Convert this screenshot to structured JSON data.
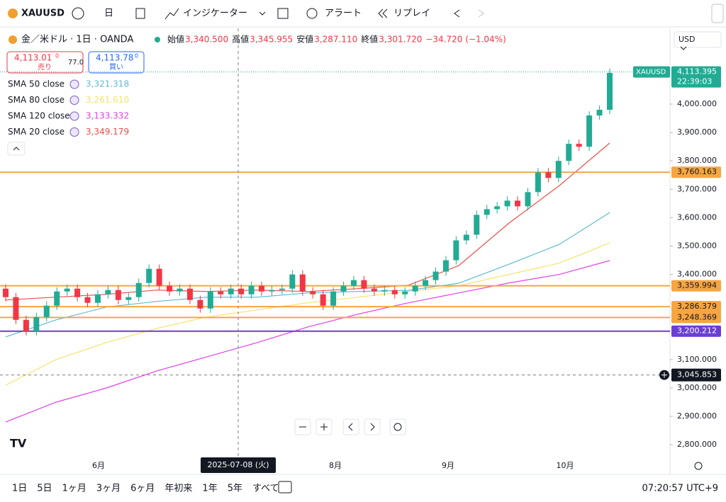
{
  "toolbar": {
    "symbol": "XAUUSD",
    "interval": "日",
    "indicators": "インジケーター",
    "alerts": "アラート",
    "replay": "リプレイ"
  },
  "header": {
    "title": "金／米ドル · 1日 · OANDA",
    "open_label": "始値",
    "open": "3,340.500",
    "high_label": "高値",
    "high": "3,345.955",
    "low_label": "安値",
    "low": "3,287.110",
    "close_label": "終値",
    "close": "3,301.720",
    "change": "−34.720 (−1.04%)",
    "sell_price": "4,113.01",
    "sell_sup": "0",
    "sell_label": "売り",
    "spread": "77.0",
    "buy_price": "4,113.78",
    "buy_sup": "0",
    "buy_label": "買い"
  },
  "indicators": [
    {
      "name": "SMA 50 close",
      "value": "3,321.318",
      "color": "#5fb9d6"
    },
    {
      "name": "SMA 80 close",
      "value": "3,261.610",
      "color": "#f5e26b"
    },
    {
      "name": "SMA 120 close",
      "value": "3,133.332",
      "color": "#e040e8"
    },
    {
      "name": "SMA 20 close",
      "value": "3,349.179",
      "color": "#e8504a"
    }
  ],
  "currency": "USD",
  "chart": {
    "type": "candlestick",
    "ylim": [
      2758,
      4267
    ],
    "up_color": "#22ab94",
    "down_color": "#f23645",
    "open": [
      3350,
      3320,
      3240,
      3200,
      3250,
      3290,
      3340,
      3350,
      3320,
      3300,
      3330,
      3345,
      3310,
      3320,
      3370,
      3420,
      3360,
      3340,
      3350,
      3310,
      3280,
      3340,
      3330,
      3350,
      3330,
      3360,
      3340,
      3345,
      3350,
      3400,
      3340,
      3330,
      3290,
      3340,
      3360,
      3380,
      3350,
      3340,
      3345,
      3330,
      3340,
      3360,
      3380,
      3410,
      3450,
      3520,
      3540,
      3610,
      3630,
      3640,
      3660,
      3640,
      3690,
      3760,
      3740,
      3800,
      3860,
      3850,
      3960,
      3980
    ],
    "high": [
      3365,
      3335,
      3255,
      3265,
      3305,
      3355,
      3365,
      3365,
      3335,
      3345,
      3360,
      3360,
      3335,
      3385,
      3435,
      3435,
      3375,
      3365,
      3365,
      3325,
      3355,
      3355,
      3365,
      3365,
      3375,
      3375,
      3360,
      3365,
      3415,
      3415,
      3355,
      3345,
      3355,
      3375,
      3395,
      3395,
      3365,
      3360,
      3360,
      3355,
      3375,
      3395,
      3425,
      3465,
      3535,
      3555,
      3625,
      3645,
      3655,
      3675,
      3675,
      3705,
      3775,
      3775,
      3815,
      3875,
      3875,
      3975,
      3995,
      4125
    ],
    "low": [
      3305,
      3225,
      3185,
      3185,
      3235,
      3275,
      3325,
      3305,
      3285,
      3285,
      3315,
      3295,
      3295,
      3305,
      3355,
      3345,
      3325,
      3325,
      3295,
      3265,
      3265,
      3315,
      3315,
      3315,
      3315,
      3325,
      3325,
      3330,
      3335,
      3325,
      3315,
      3275,
      3275,
      3325,
      3345,
      3335,
      3325,
      3325,
      3315,
      3315,
      3325,
      3345,
      3365,
      3395,
      3435,
      3505,
      3525,
      3595,
      3615,
      3625,
      3625,
      3625,
      3675,
      3725,
      3725,
      3785,
      3835,
      3835,
      3945,
      3965
    ],
    "close": [
      3320,
      3240,
      3200,
      3250,
      3290,
      3340,
      3350,
      3320,
      3300,
      3330,
      3345,
      3310,
      3320,
      3370,
      3420,
      3360,
      3340,
      3350,
      3310,
      3280,
      3340,
      3330,
      3350,
      3330,
      3360,
      3340,
      3345,
      3350,
      3400,
      3340,
      3330,
      3290,
      3340,
      3360,
      3380,
      3350,
      3340,
      3345,
      3330,
      3340,
      3360,
      3380,
      3410,
      3450,
      3520,
      3540,
      3610,
      3630,
      3640,
      3660,
      3640,
      3690,
      3760,
      3740,
      3800,
      3860,
      3850,
      3960,
      3980,
      4110
    ],
    "sma": [
      {
        "color": "#e8504a",
        "values": [
          3310,
          3320,
          3330,
          3345,
          3340,
          3345,
          3340,
          3350,
          3362,
          3431,
          3581,
          3713,
          3863
        ]
      },
      {
        "color": "#5fb9d6",
        "values": [
          3180,
          3240,
          3285,
          3305,
          3320,
          3320,
          3335,
          3340,
          3344,
          3369,
          3436,
          3506,
          3618
        ]
      },
      {
        "color": "#f5e26b",
        "values": [
          3010,
          3100,
          3160,
          3210,
          3250,
          3275,
          3300,
          3320,
          3340,
          3360,
          3400,
          3440,
          3511
        ]
      },
      {
        "color": "#e040e8",
        "values": [
          2880,
          2950,
          3000,
          3060,
          3110,
          3160,
          3215,
          3260,
          3300,
          3335,
          3370,
          3400,
          3449
        ]
      }
    ],
    "levels": [
      {
        "value": 3760.163,
        "label": "3,760.163",
        "color": "#f7a541"
      },
      {
        "value": 3359.994,
        "label": "3,359.994",
        "color": "#f7a541"
      },
      {
        "value": 3286.379,
        "label": "3,286.379",
        "color": "#f7a541"
      },
      {
        "value": 3248.369,
        "label": "3,248.369",
        "color": "#f7a541"
      },
      {
        "value": 3200.212,
        "label": "3,200.212",
        "color": "#6a3fd1"
      }
    ],
    "crosshair": {
      "value": 3045.853,
      "label": "3,045.853",
      "date": "2025-07-08 (火)"
    },
    "last": {
      "symbol": "XAUUSD",
      "value": 4113.395,
      "label": "4,113.395",
      "countdown": "22:39:03"
    },
    "yticks": [
      {
        "value": 4000,
        "label": "4,000.000"
      },
      {
        "value": 3900,
        "label": "3,900.000"
      },
      {
        "value": 3800,
        "label": "3,800.000"
      },
      {
        "value": 3700,
        "label": "3,700.000"
      },
      {
        "value": 3600,
        "label": "3,600.000"
      },
      {
        "value": 3500,
        "label": "3,500.000"
      },
      {
        "value": 3400,
        "label": "3,400.000"
      },
      {
        "value": 3100,
        "label": "3,100.000"
      },
      {
        "value": 3000,
        "label": "3,000.000"
      },
      {
        "value": 2900,
        "label": "2,900.000"
      },
      {
        "value": 2800,
        "label": "2,800.000"
      }
    ],
    "months": [
      "6月",
      "8月",
      "9月",
      "10月"
    ]
  },
  "ranges": [
    "1日",
    "5日",
    "1ヶ月",
    "3ヶ月",
    "6ヶ月",
    "年初来",
    "1年",
    "5年",
    "すべて"
  ],
  "clock": "07:20:57 UTC+9"
}
